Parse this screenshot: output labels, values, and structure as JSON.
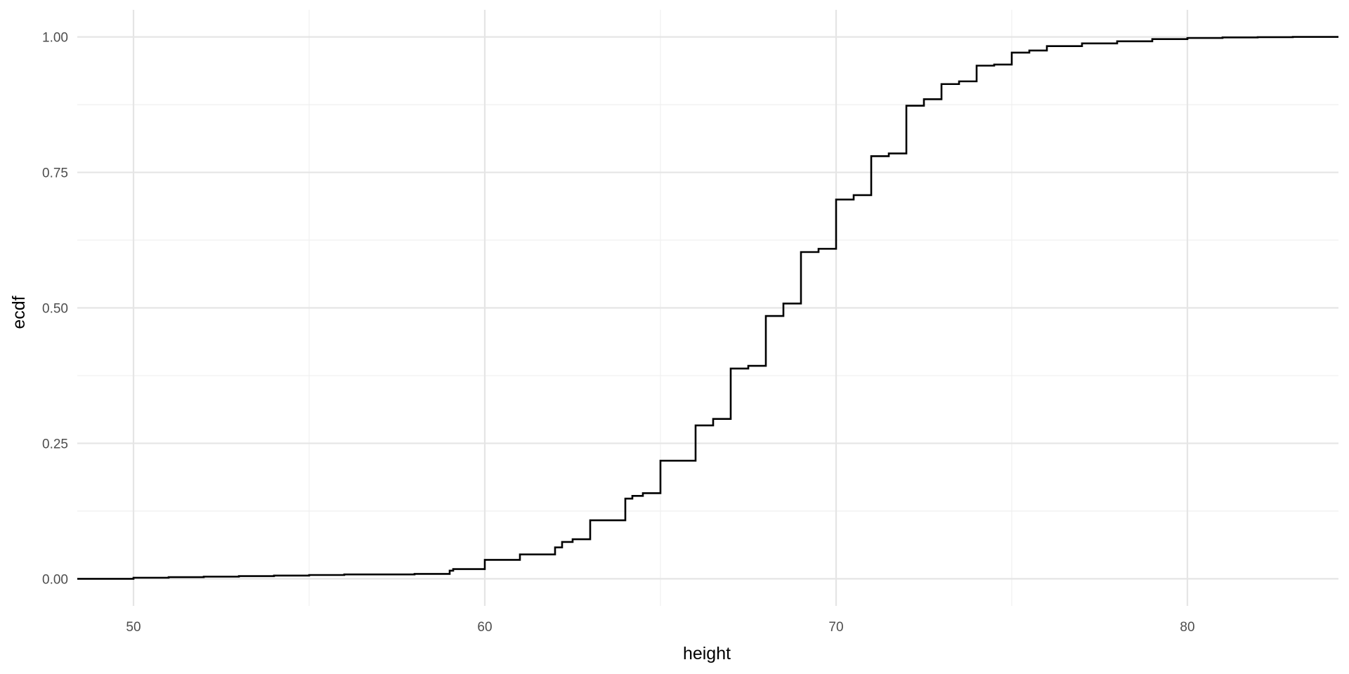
{
  "chart_data": {
    "type": "line",
    "subtype": "ecdf-step",
    "title": "",
    "xlabel": "height",
    "ylabel": "ecdf",
    "xlim": [
      48.4,
      84.3
    ],
    "ylim": [
      -0.05,
      1.05
    ],
    "x_ticks": [
      50,
      60,
      70,
      80
    ],
    "x_tick_labels": [
      "50",
      "60",
      "70",
      "80"
    ],
    "y_ticks": [
      0,
      0.25,
      0.5,
      0.75,
      1.0
    ],
    "y_tick_labels": [
      "0.00",
      "0.25",
      "0.50",
      "0.75",
      "1.00"
    ],
    "grid": true,
    "legend": "none",
    "colors": {
      "line": "#000000",
      "grid_major": "#e5e5e5",
      "grid_minor": "#f0f0f0",
      "background": "#ffffff"
    },
    "series": [
      {
        "x": [
          50,
          51,
          52,
          53,
          54,
          55,
          56,
          57,
          58,
          59,
          59.1,
          60,
          61,
          62,
          62.2,
          62.5,
          63,
          64,
          64.2,
          64.5,
          65,
          66,
          66.5,
          67,
          67.5,
          68,
          68.5,
          69,
          69.5,
          70,
          70.5,
          71,
          71.5,
          72,
          72.5,
          73,
          73.5,
          74,
          74.5,
          75,
          75.5,
          76,
          77,
          78,
          79,
          80,
          81,
          82,
          83
        ],
        "y": [
          0.002,
          0.003,
          0.004,
          0.005,
          0.006,
          0.007,
          0.008,
          0.008,
          0.009,
          0.015,
          0.018,
          0.035,
          0.045,
          0.058,
          0.068,
          0.073,
          0.108,
          0.148,
          0.153,
          0.158,
          0.218,
          0.283,
          0.295,
          0.388,
          0.393,
          0.485,
          0.508,
          0.603,
          0.609,
          0.7,
          0.708,
          0.78,
          0.785,
          0.873,
          0.885,
          0.913,
          0.918,
          0.947,
          0.949,
          0.971,
          0.975,
          0.983,
          0.988,
          0.992,
          0.996,
          0.998,
          0.999,
          0.9995,
          1.0
        ]
      }
    ]
  }
}
